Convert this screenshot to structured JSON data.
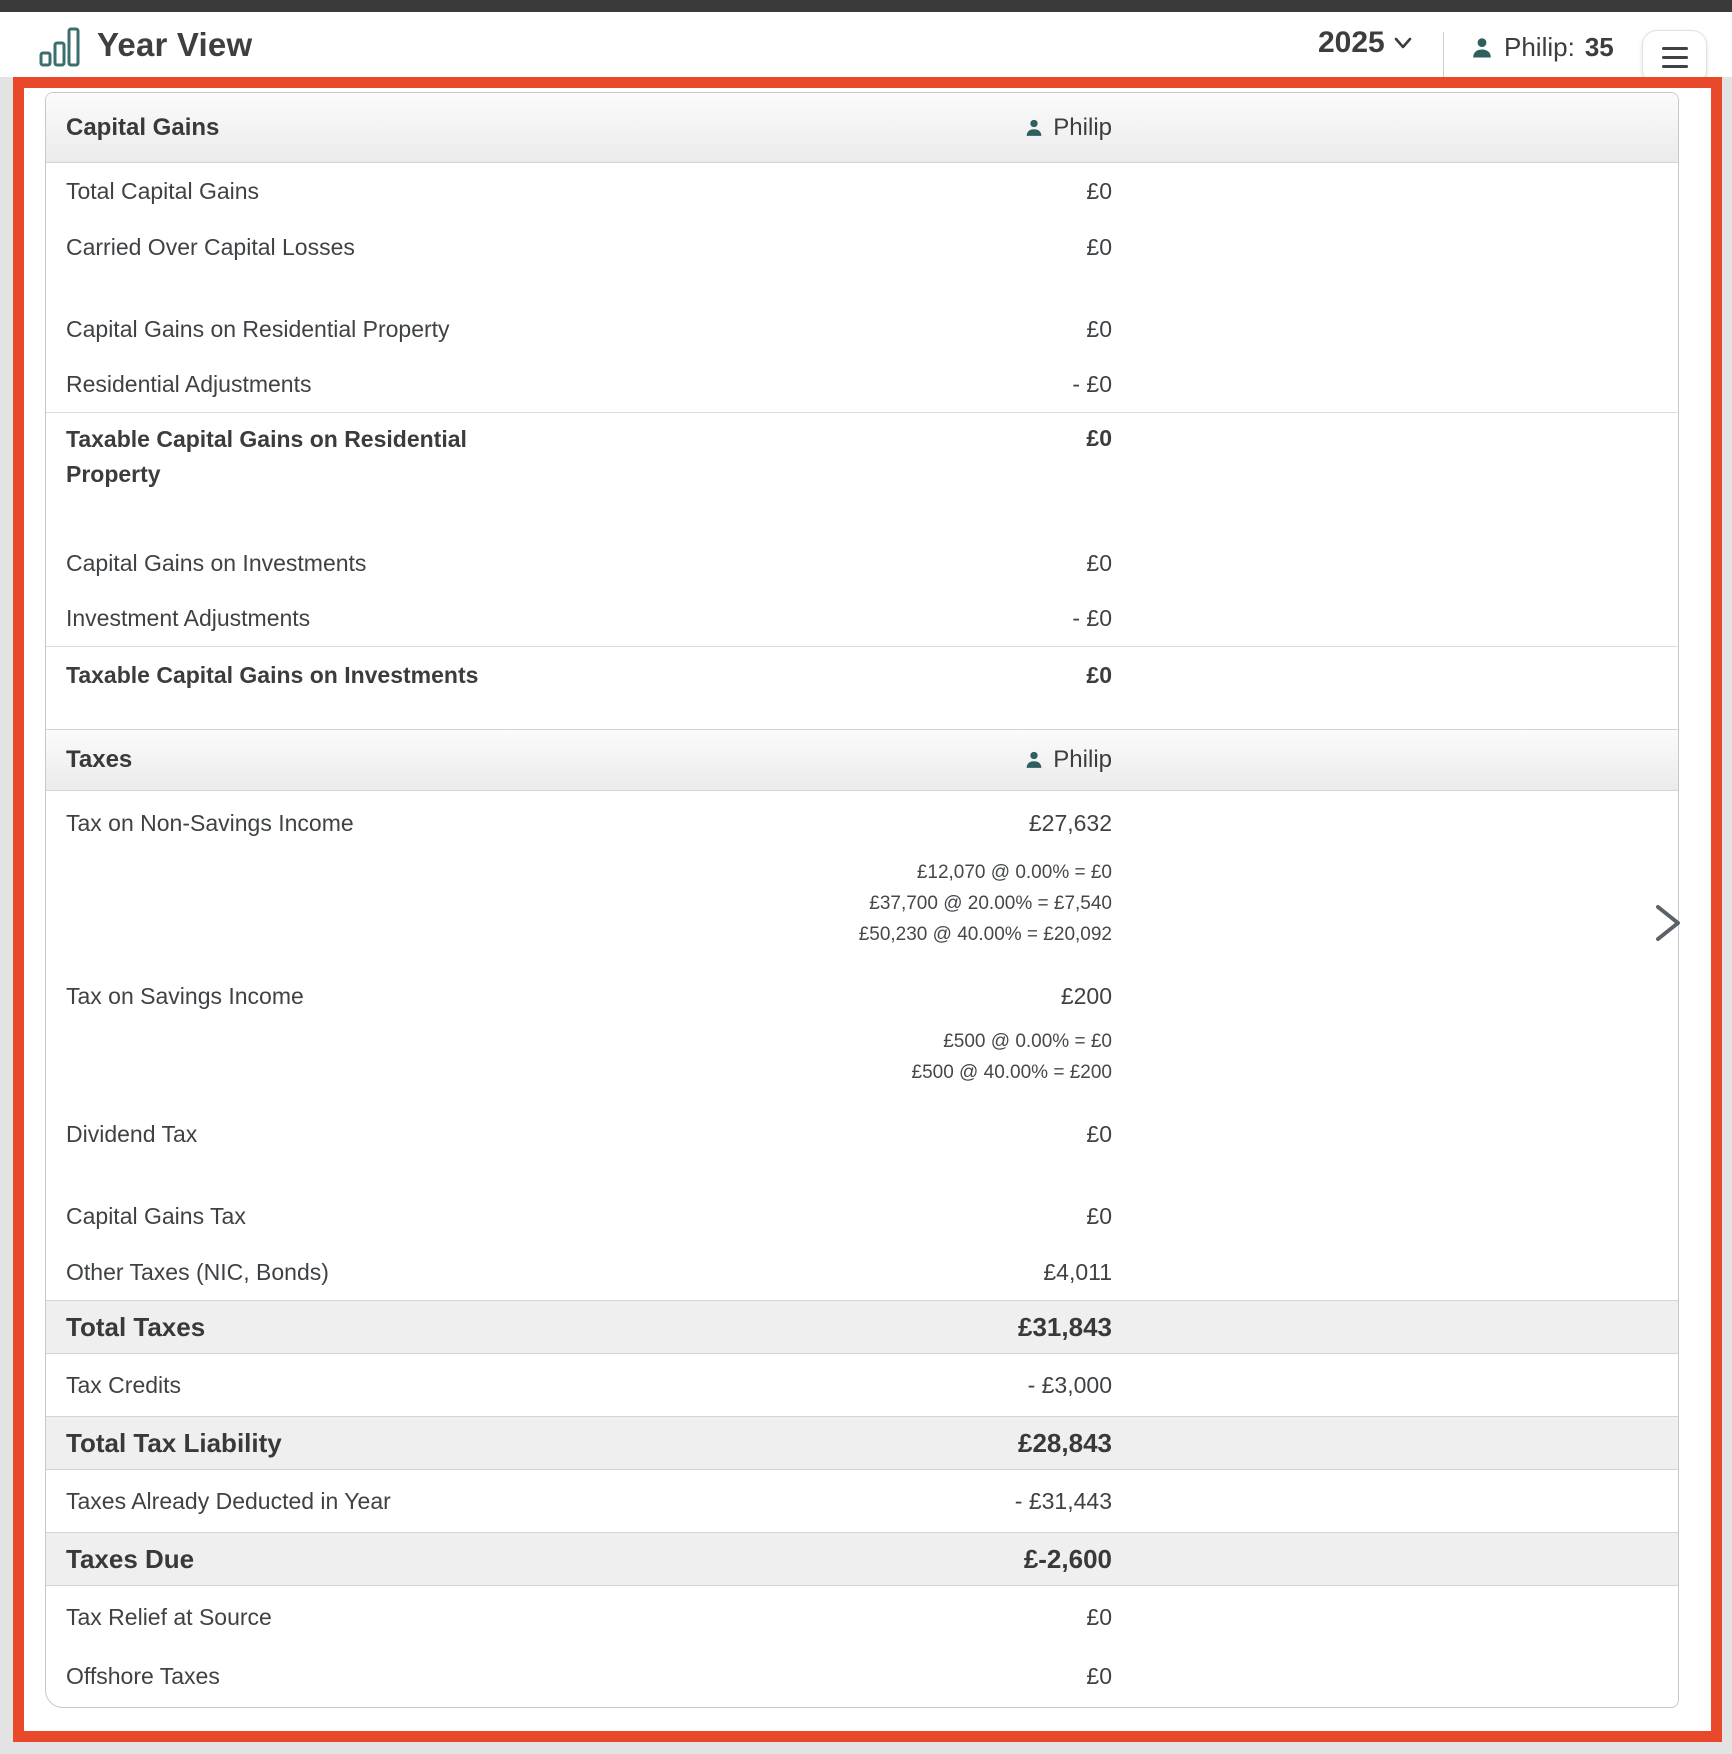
{
  "header": {
    "app_title": "Year View",
    "year": "2025",
    "user_name": "Philip:",
    "user_age": "35"
  },
  "icons": {
    "logo": "bar-chart-icon",
    "year_dropdown": "chevron-down-icon",
    "user": "person-icon",
    "menu": "hamburger-icon",
    "scroll_next": "chevron-right-icon"
  },
  "accent_colors": {
    "teal": "#2e5f5f",
    "highlight_red": "#e8492a"
  },
  "table": {
    "sections": [
      {
        "title": "Capital Gains",
        "person": "Philip",
        "rows": [
          {
            "label": "Total Capital Gains",
            "value": "£0",
            "kind": "plain"
          },
          {
            "label": "Carried Over Capital Losses",
            "value": "£0",
            "kind": "plain"
          },
          {
            "label": "Capital Gains on Residential Property",
            "value": "£0",
            "kind": "plain",
            "spacer_before": true
          },
          {
            "label": "Residential Adjustments",
            "value": "- £0",
            "kind": "plain",
            "border_bottom": true
          },
          {
            "label": "Taxable Capital Gains on Residential Property",
            "value": "£0",
            "kind": "bold-two-line"
          },
          {
            "label": "Capital Gains on Investments",
            "value": "£0",
            "kind": "plain",
            "spacer_before": true
          },
          {
            "label": "Investment Adjustments",
            "value": "- £0",
            "kind": "plain",
            "border_bottom": true
          },
          {
            "label": "Taxable Capital Gains on Investments",
            "value": "£0",
            "kind": "bold"
          }
        ]
      },
      {
        "title": "Taxes",
        "person": "Philip",
        "spacer_before": true,
        "rows": [
          {
            "label": "Tax on Non-Savings Income",
            "value": "£27,632",
            "kind": "plain-tall",
            "breakdown": [
              "£12,070 @ 0.00% = £0",
              "£37,700 @ 20.00% = £7,540",
              "£50,230 @ 40.00% = £20,092"
            ]
          },
          {
            "label": "Tax on Savings Income",
            "value": "£200",
            "kind": "plain",
            "breakdown": [
              "£500 @ 0.00% = £0",
              "£500 @ 40.00% = £200"
            ]
          },
          {
            "label": "Dividend Tax",
            "value": "£0",
            "kind": "plain"
          },
          {
            "label": "Capital Gains Tax",
            "value": "£0",
            "kind": "plain",
            "spacer_before": true
          },
          {
            "label": "Other Taxes (NIC, Bonds)",
            "value": "£4,011",
            "kind": "plain"
          },
          {
            "label": "Total Taxes",
            "value": "£31,843",
            "kind": "total"
          },
          {
            "label": "Tax Credits",
            "value": "- £3,000",
            "kind": "plain-taller"
          },
          {
            "label": "Total Tax Liability",
            "value": "£28,843",
            "kind": "total"
          },
          {
            "label": "Taxes Already Deducted in Year",
            "value": "- £31,443",
            "kind": "plain-taller"
          },
          {
            "label": "Taxes Due",
            "value": "£-2,600",
            "kind": "total"
          },
          {
            "label": "Tax Relief at Source",
            "value": "£0",
            "kind": "plain-taller"
          },
          {
            "label": "Offshore Taxes",
            "value": "£0",
            "kind": "plain"
          }
        ]
      }
    ]
  }
}
